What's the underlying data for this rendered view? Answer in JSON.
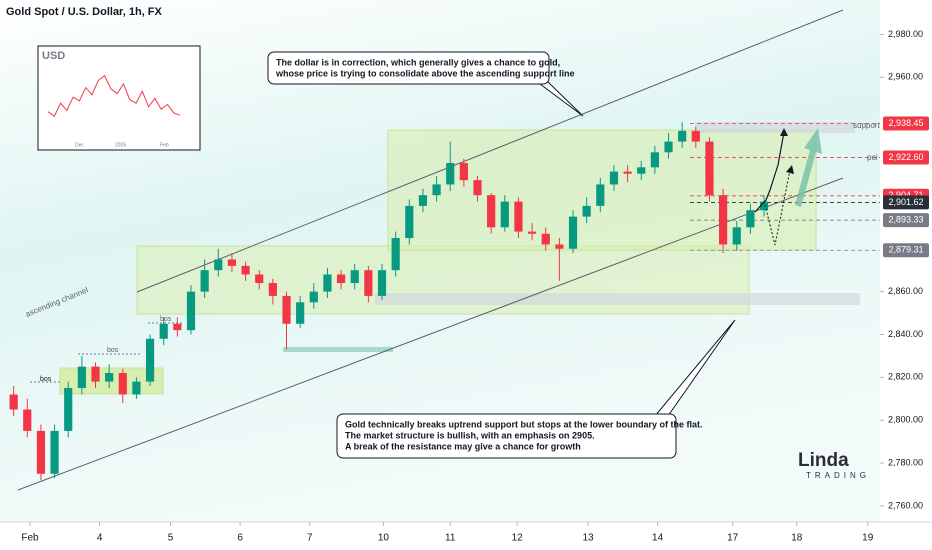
{
  "chart_data": {
    "type": "candlestick",
    "title": "Gold Spot / U.S. Dollar, 1h, FX",
    "xlim": [
      -1,
      63.5
    ],
    "xticks": [
      {
        "value": 1.2,
        "label": "Feb"
      },
      {
        "value": 6.3,
        "label": "4"
      },
      {
        "value": 11.5,
        "label": "5"
      },
      {
        "value": 16.6,
        "label": "6"
      },
      {
        "value": 21.7,
        "label": "7"
      },
      {
        "value": 27.1,
        "label": "10"
      },
      {
        "value": 32,
        "label": "11"
      },
      {
        "value": 36.9,
        "label": "12"
      },
      {
        "value": 42.1,
        "label": "13"
      },
      {
        "value": 47.2,
        "label": "14"
      },
      {
        "value": 52.7,
        "label": "17"
      },
      {
        "value": 57.4,
        "label": "18"
      },
      {
        "value": 62.6,
        "label": "19"
      }
    ],
    "ylim": [
      2755.3,
      2990
    ],
    "yticks": [
      {
        "value": 2760,
        "label": "2,760.00"
      },
      {
        "value": 2780,
        "label": "2,780.00"
      },
      {
        "value": 2800,
        "label": "2,800.00"
      },
      {
        "value": 2820,
        "label": "2,820.00"
      },
      {
        "value": 2840,
        "label": "2,840.00"
      },
      {
        "value": 2860,
        "label": "2,860.00"
      },
      {
        "value": 2960,
        "label": "2,960.00"
      },
      {
        "value": 2980,
        "label": "2,980.00"
      }
    ],
    "up_color": "#089981",
    "down_color": "#f23645",
    "open": [
      2812,
      2805,
      2795,
      2775,
      2795,
      2815,
      2825,
      2818,
      2822,
      2812,
      2818,
      2838,
      2845,
      2842,
      2860,
      2870,
      2875,
      2872,
      2868,
      2864,
      2858,
      2845,
      2855,
      2860,
      2868,
      2864,
      2870,
      2858,
      2870,
      2885,
      2900,
      2905,
      2910,
      2920,
      2912,
      2905,
      2890,
      2902,
      2888,
      2887,
      2882,
      2880,
      2895,
      2900,
      2910,
      2916,
      2915,
      2918,
      2925,
      2930,
      2935,
      2930,
      2905,
      2882,
      2890,
      2898
    ],
    "high": [
      2816,
      2810,
      2798,
      2798,
      2818,
      2830,
      2827,
      2826,
      2824,
      2820,
      2840,
      2848,
      2848,
      2863,
      2875,
      2880,
      2878,
      2874,
      2870,
      2866,
      2860,
      2858,
      2864,
      2871,
      2870,
      2873,
      2872,
      2873,
      2888,
      2903,
      2908,
      2914,
      2930,
      2922,
      2914,
      2906,
      2905,
      2904,
      2892,
      2890,
      2885,
      2898,
      2904,
      2913,
      2919,
      2919,
      2921,
      2928,
      2934,
      2939,
      2937,
      2932,
      2908,
      2893,
      2901,
      2905
    ],
    "low": [
      2802,
      2792,
      2772,
      2773,
      2792,
      2812,
      2815,
      2815,
      2808,
      2810,
      2816,
      2835,
      2839,
      2840,
      2857,
      2867,
      2869,
      2865,
      2861,
      2854,
      2833,
      2843,
      2852,
      2857,
      2861,
      2861,
      2855,
      2856,
      2867,
      2882,
      2897,
      2902,
      2907,
      2909,
      2902,
      2887,
      2888,
      2885,
      2884,
      2879,
      2865,
      2878,
      2892,
      2897,
      2907,
      2911,
      2912,
      2915,
      2922,
      2927,
      2927,
      2902,
      2878,
      2879,
      2887,
      2895
    ],
    "close": [
      2805,
      2795,
      2775,
      2795,
      2815,
      2825,
      2818,
      2822,
      2812,
      2818,
      2838,
      2845,
      2842,
      2860,
      2870,
      2875,
      2872,
      2868,
      2864,
      2858,
      2845,
      2855,
      2860,
      2868,
      2864,
      2870,
      2858,
      2870,
      2885,
      2900,
      2905,
      2910,
      2920,
      2912,
      2905,
      2890,
      2902,
      2888,
      2887,
      2882,
      2880,
      2895,
      2900,
      2910,
      2916,
      2915,
      2918,
      2925,
      2930,
      2935,
      2930,
      2905,
      2882,
      2890,
      2898,
      2902
    ],
    "price_labels": [
      {
        "value": 2938.45,
        "label": "2,938.45",
        "color": "#f23645"
      },
      {
        "value": 2922.6,
        "label": "2,922.60",
        "color": "#f23645"
      },
      {
        "value": 2904.71,
        "label": "2,904.71",
        "color": "#f23645"
      },
      {
        "value": 2901.62,
        "label": "2,901.62",
        "color": "#2a2e39"
      },
      {
        "value": 2893.33,
        "label": "2,893.33",
        "color": "#787b86"
      },
      {
        "value": 2879.31,
        "label": "2,879.31",
        "color": "#787b86"
      }
    ],
    "level_labels": [
      "support",
      "poi"
    ],
    "structure_labels": [
      "bos",
      "bos",
      "bos"
    ],
    "channel_label": "ascending channel",
    "annotations": [
      {
        "lines": [
          "The dollar is in correction, which generally gives a chance to gold,",
          "whose price is trying to consolidate above the ascending support line"
        ]
      },
      {
        "lines": [
          "Gold technically breaks uptrend support but stops at the lower boundary of the flat.",
          "The market structure is bullish, with an emphasis on 2905.",
          "A break of the resistance may give a chance for growth"
        ]
      }
    ],
    "inset": {
      "title": "USD",
      "type": "line",
      "color": "#f23645",
      "ylim": [
        105,
        111.5
      ],
      "values": [
        107.2,
        106.8,
        107.9,
        107.3,
        108.4,
        108.1,
        109.2,
        108.6,
        109.8,
        110.2,
        109.1,
        108.7,
        109.5,
        108.2,
        107.9,
        108.9,
        107.6,
        108.3,
        107.4,
        107.8,
        107.1,
        106.9
      ],
      "labels": [
        "Dec",
        "2025",
        "Feb"
      ]
    },
    "logo": {
      "name": "Linda",
      "sub": "TRADING"
    }
  }
}
